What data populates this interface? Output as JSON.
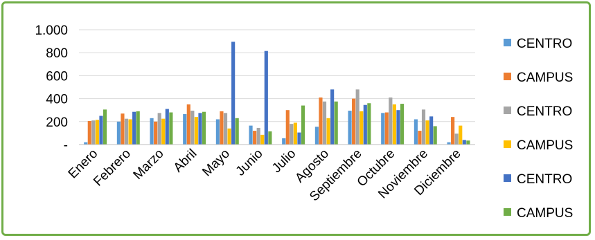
{
  "chart_data": {
    "type": "bar",
    "categories": [
      "Enero",
      "Febrero",
      "Marzo",
      "Abril",
      "Mayo",
      "Junio",
      "Julio",
      "Agosto",
      "Septiembre",
      "Octubre",
      "Noviembre",
      "Diciembre"
    ],
    "y_tick_labels": [
      "-",
      "200",
      "400",
      "600",
      "800",
      "1.000"
    ],
    "ylim": [
      0,
      1000
    ],
    "grid": true,
    "legend_position": "right",
    "series": [
      {
        "name": "CENTRO",
        "color": "#5b9bd5",
        "values": [
          20,
          200,
          230,
          265,
          220,
          165,
          55,
          155,
          295,
          275,
          220,
          20
        ]
      },
      {
        "name": "CAMPUS",
        "color": "#ed7d31",
        "values": [
          205,
          270,
          200,
          350,
          290,
          120,
          300,
          410,
          400,
          280,
          120,
          240
        ]
      },
      {
        "name": "CENTRO",
        "color": "#a5a5a5",
        "values": [
          210,
          225,
          275,
          295,
          275,
          145,
          180,
          375,
          480,
          410,
          305,
          95
        ]
      },
      {
        "name": "CAMPUS",
        "color": "#ffc000",
        "values": [
          215,
          220,
          225,
          240,
          140,
          85,
          190,
          230,
          290,
          350,
          210,
          165
        ]
      },
      {
        "name": "CENTRO",
        "color": "#4472c4",
        "values": [
          250,
          285,
          310,
          275,
          895,
          815,
          105,
          480,
          345,
          300,
          245,
          40
        ]
      },
      {
        "name": "CAMPUS",
        "color": "#70ad47",
        "values": [
          305,
          290,
          280,
          285,
          230,
          115,
          340,
          375,
          360,
          355,
          160,
          35
        ]
      }
    ]
  }
}
